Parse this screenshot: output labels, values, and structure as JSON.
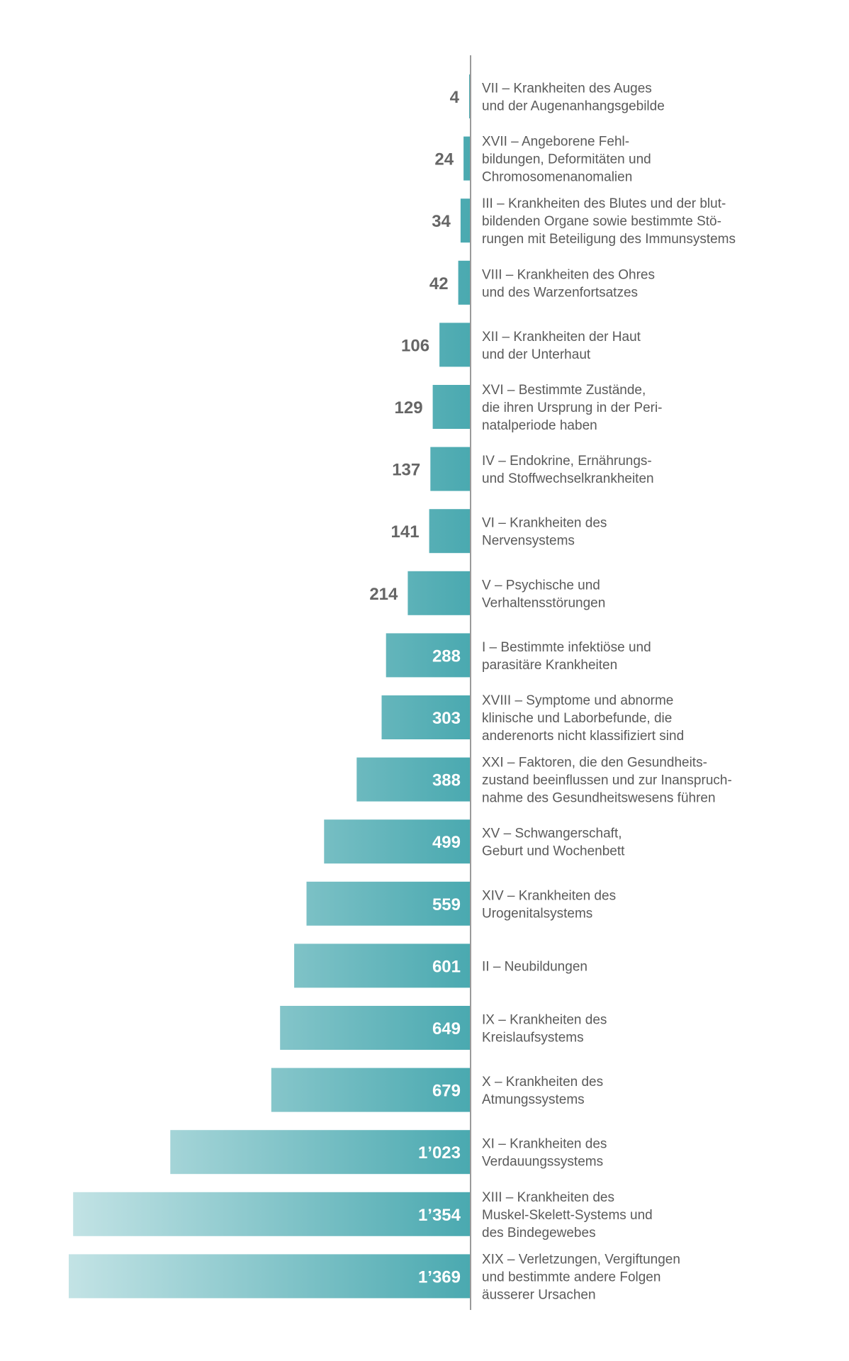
{
  "chart_data": {
    "type": "bar",
    "orientation": "horizontal",
    "title": "",
    "xlabel": "",
    "ylabel": "",
    "grid": false,
    "legend": "none",
    "colors": {
      "bar_dark": "#4aa9b0",
      "bar_light": "#c3e3e5",
      "axis": "#9a9a9a",
      "label_inside": "#ffffff",
      "label_outside": "#666666",
      "category_text": "#5a5a5a"
    },
    "bars": [
      {
        "value": 4,
        "value_label": "4",
        "label_lines": [
          "VII – Krankheiten des Auges",
          "und der Augenanhangsgebilde"
        ]
      },
      {
        "value": 24,
        "value_label": "24",
        "label_lines": [
          "XVII – Angeborene Fehl-",
          "bildungen, Deformitäten und",
          "Chromosomenanomalien"
        ]
      },
      {
        "value": 34,
        "value_label": "34",
        "label_lines": [
          "III – Krankheiten des Blutes und der blut-",
          "bildenden Organe sowie bestimmte Stö-",
          "rungen mit Beteiligung des Immunsystems"
        ]
      },
      {
        "value": 42,
        "value_label": "42",
        "label_lines": [
          "VIII – Krankheiten des Ohres",
          "und des Warzenfortsatzes"
        ]
      },
      {
        "value": 106,
        "value_label": "106",
        "label_lines": [
          "XII – Krankheiten der Haut",
          "und der Unterhaut"
        ]
      },
      {
        "value": 129,
        "value_label": "129",
        "label_lines": [
          "XVI – Bestimmte Zustände,",
          "die ihren Ursprung in der Peri-",
          "natalperiode haben"
        ]
      },
      {
        "value": 137,
        "value_label": "137",
        "label_lines": [
          "IV – Endokrine, Ernährungs-",
          "und Stoffwechselkrankheiten"
        ]
      },
      {
        "value": 141,
        "value_label": "141",
        "label_lines": [
          "VI – Krankheiten des",
          "Nervensystems"
        ]
      },
      {
        "value": 214,
        "value_label": "214",
        "label_lines": [
          "V – Psychische und",
          "Verhaltensstörungen"
        ]
      },
      {
        "value": 288,
        "value_label": "288",
        "label_lines": [
          "I – Bestimmte infektiöse und",
          "parasitäre Krankheiten"
        ]
      },
      {
        "value": 303,
        "value_label": "303",
        "label_lines": [
          "XVIII – Symptome und abnorme",
          "klinische und Laborbefunde, die",
          "anderenorts nicht klassifiziert sind"
        ]
      },
      {
        "value": 388,
        "value_label": "388",
        "label_lines": [
          "XXI – Faktoren, die den Gesundheits-",
          "zustand beeinflussen und zur Inanspruch-",
          "nahme des Gesundheitswesens führen"
        ]
      },
      {
        "value": 499,
        "value_label": "499",
        "label_lines": [
          "XV – Schwangerschaft,",
          "Geburt und Wochenbett"
        ]
      },
      {
        "value": 559,
        "value_label": "559",
        "label_lines": [
          "XIV – Krankheiten des",
          "Urogenitalsystems"
        ]
      },
      {
        "value": 601,
        "value_label": "601",
        "label_lines": [
          "II – Neubildungen"
        ]
      },
      {
        "value": 649,
        "value_label": "649",
        "label_lines": [
          "IX – Krankheiten des",
          "Kreislaufsystems"
        ]
      },
      {
        "value": 679,
        "value_label": "679",
        "label_lines": [
          "X – Krankheiten des",
          "Atmungssystems"
        ]
      },
      {
        "value": 1023,
        "value_label": "1’023",
        "label_lines": [
          "XI – Krankheiten des",
          "Verdauungssystems"
        ]
      },
      {
        "value": 1354,
        "value_label": "1’354",
        "label_lines": [
          "XIII – Krankheiten des",
          "Muskel-Skelett-Systems und",
          "des Bindegewebes"
        ]
      },
      {
        "value": 1369,
        "value_label": "1’369",
        "label_lines": [
          "XIX – Verletzungen, Vergiftungen",
          "und bestimmte andere Folgen",
          "äusserer Ursachen"
        ]
      }
    ]
  }
}
